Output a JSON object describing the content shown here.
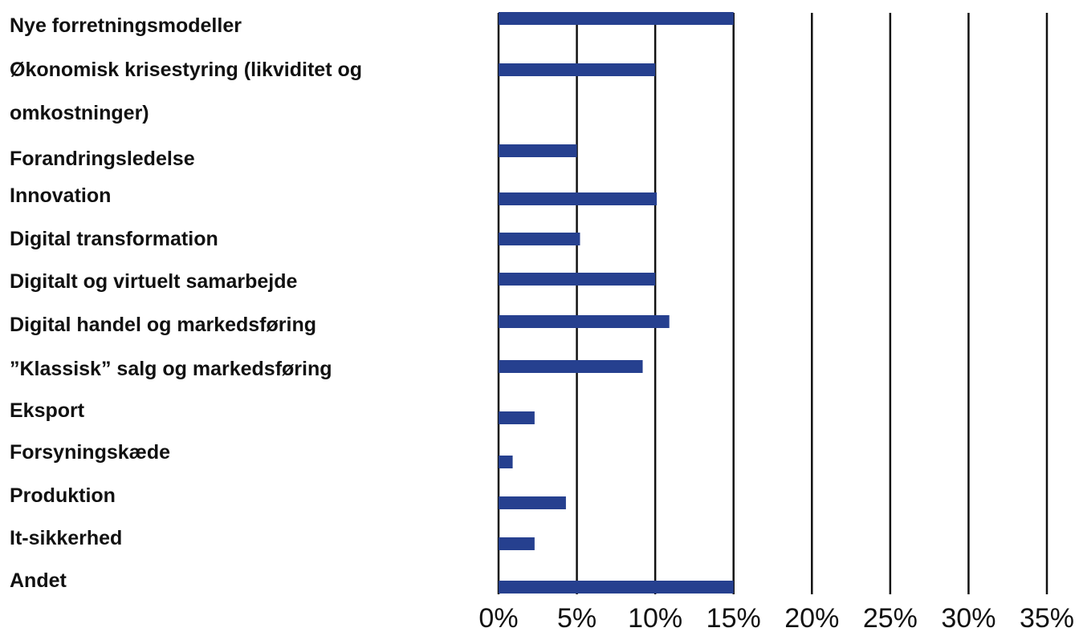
{
  "chart_data": {
    "type": "bar",
    "orientation": "horizontal",
    "categories": [
      "Nye forretningsmodeller",
      "Økonomisk krisestyring (likviditet og omkostninger)",
      "Forandringsledelse",
      "Innovation",
      "Digital transformation",
      "Digitalt og virtuelt samarbejde",
      "Digital handel og markedsføring",
      "”Klassisk” salg og markedsføring",
      "Eksport",
      "Forsyningskæde",
      "Produktion",
      "It-sikkerhed",
      "Andet"
    ],
    "category_label_lines": [
      [
        "Nye forretningsmodeller"
      ],
      [
        "Økonomisk krisestyring (likviditet og",
        "omkostninger)"
      ],
      [
        "Forandringsledelse"
      ],
      [
        "Innovation"
      ],
      [
        "Digital transformation"
      ],
      [
        "Digitalt og virtuelt samarbejde"
      ],
      [
        "Digital handel og markedsføring"
      ],
      [
        "”Klassisk” salg og markedsføring"
      ],
      [
        "Eksport"
      ],
      [
        "Forsyningskæde"
      ],
      [
        "Produktion"
      ],
      [
        "It-sikkerhed"
      ],
      [
        "Andet"
      ]
    ],
    "values": [
      15.0,
      10.0,
      5.0,
      10.1,
      5.2,
      10.0,
      10.9,
      9.2,
      2.3,
      0.9,
      4.3,
      2.3,
      15.0
    ],
    "xlim": [
      0,
      35
    ],
    "x_ticks": [
      0,
      5,
      10,
      15,
      20,
      25,
      30,
      35
    ],
    "x_tick_labels": [
      "0%",
      "5%",
      "10%",
      "15%",
      "20%",
      "25%",
      "30%",
      "35%"
    ],
    "grid": "vertical",
    "legend": "none",
    "bar_color": "#26408f",
    "grid_color": "#111111",
    "title": "",
    "xlabel": "",
    "ylabel": ""
  }
}
